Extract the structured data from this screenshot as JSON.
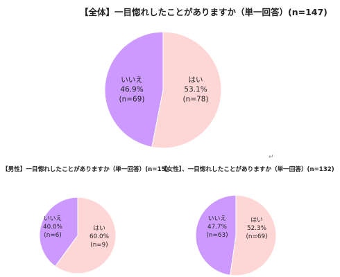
{
  "chart_data": [
    {
      "type": "pie",
      "title": "【全体】一目惚れしたことがありますか（単一回答）(n=147)",
      "slices": [
        {
          "name": "はい",
          "value": 53.1,
          "pct_label": "53.1%",
          "n_label": "(n=78)",
          "color": "#ffd6d6"
        },
        {
          "name": "いいえ",
          "value": 46.9,
          "pct_label": "46.9%",
          "n_label": "(n=69)",
          "color": "#cc99ff"
        }
      ]
    },
    {
      "type": "pie",
      "title": "【男性】一目惚れしたことがありますか（単一回答）(n=15)",
      "slices": [
        {
          "name": "はい",
          "value": 60.0,
          "pct_label": "60.0%",
          "n_label": "(n=9)",
          "color": "#ffd6d6"
        },
        {
          "name": "いいえ",
          "value": 40.0,
          "pct_label": "40.0%",
          "n_label": "(n=6)",
          "color": "#cc99ff"
        }
      ]
    },
    {
      "type": "pie",
      "title": "【女性】、一目惚れしたことがありますか（単一回答）(n=132)",
      "slices": [
        {
          "name": "はい",
          "value": 52.3,
          "pct_label": "52.3%",
          "n_label": "(n=69)",
          "color": "#ffd6d6"
        },
        {
          "name": "いいえ",
          "value": 47.7,
          "pct_label": "47.7%",
          "n_label": "(n=63)",
          "color": "#cc99ff"
        }
      ]
    }
  ],
  "marks": {
    "cursor_mark": "↵"
  }
}
